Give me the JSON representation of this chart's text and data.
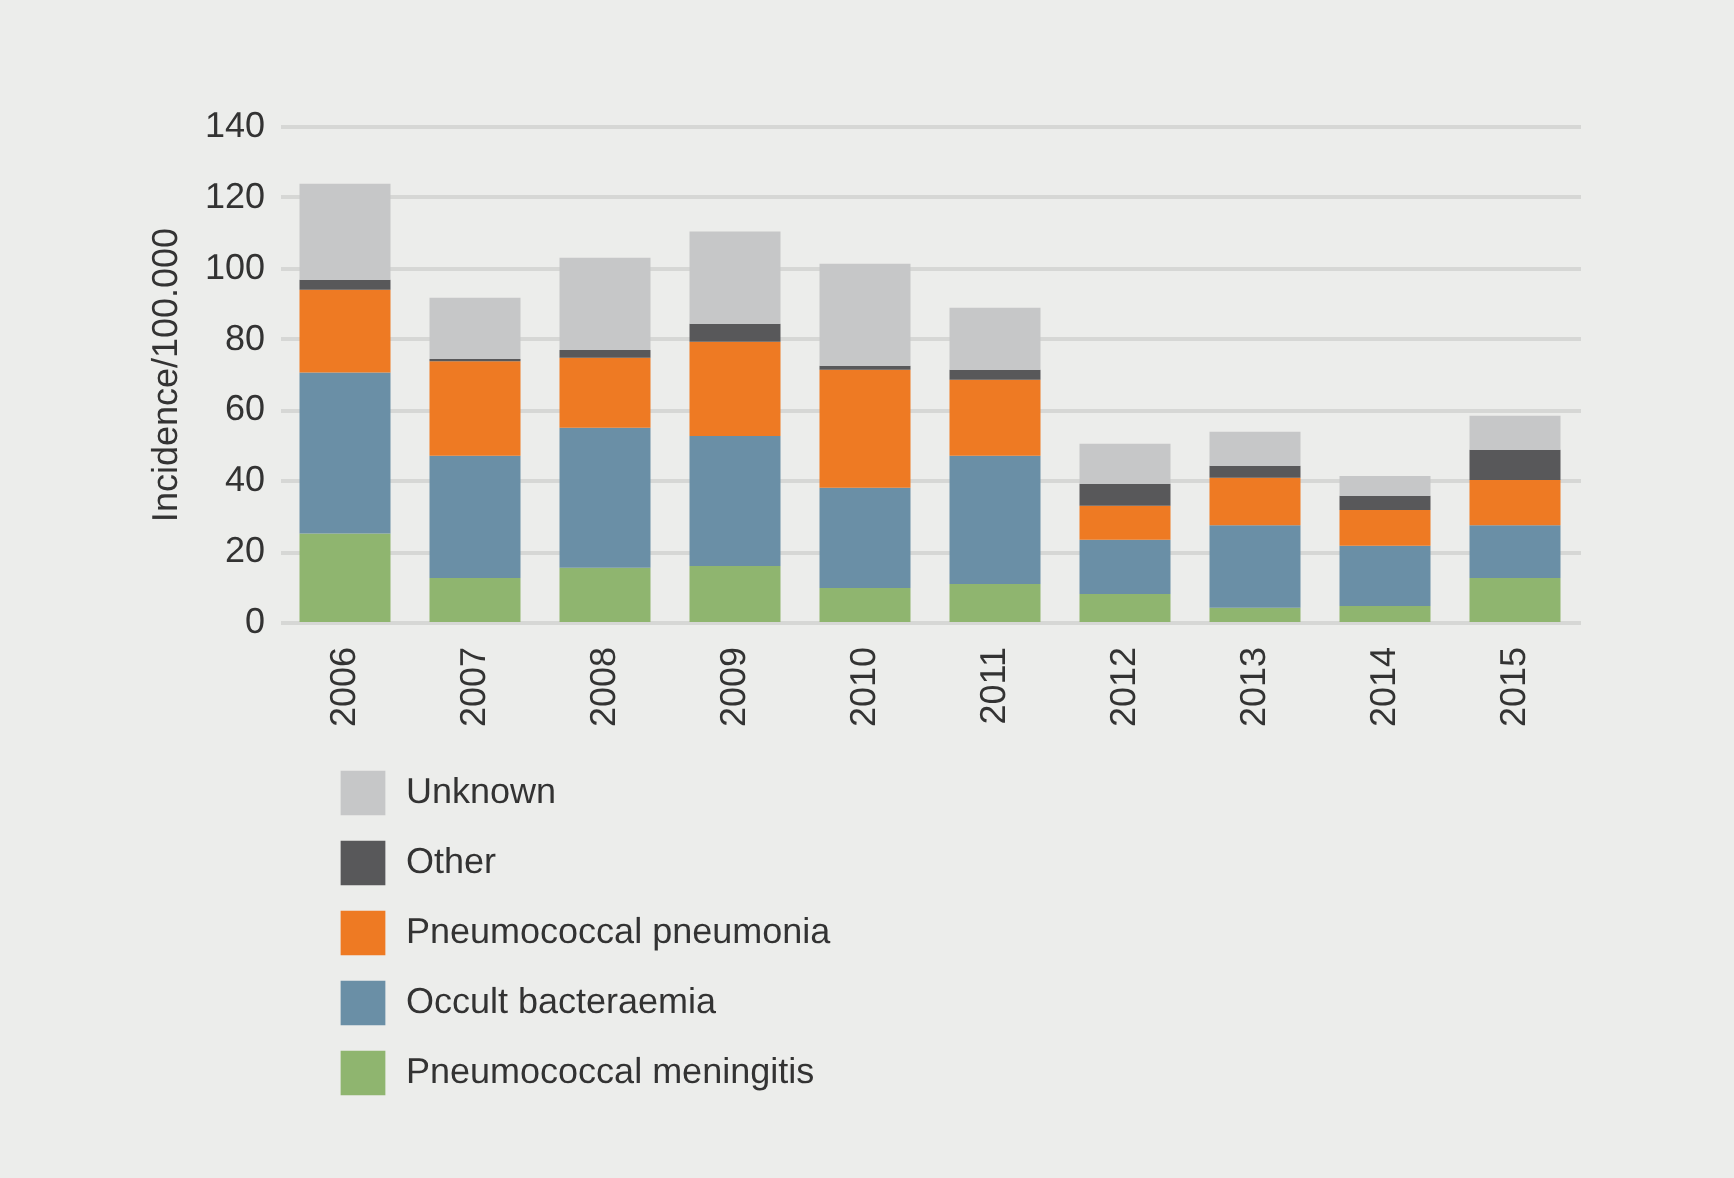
{
  "chart_data": {
    "type": "bar",
    "stacked": true,
    "ylabel": "Incidence/100.000",
    "categories": [
      "2006",
      "2007",
      "2008",
      "2009",
      "2010",
      "2011",
      "2012",
      "2013",
      "2014",
      "2015"
    ],
    "series": [
      {
        "name": "Pneumococcal meningitis",
        "color": "#8fb56f",
        "values": [
          25,
          12.4,
          15.3,
          15.8,
          9.6,
          10.7,
          7.9,
          4,
          4.5,
          12.4
        ]
      },
      {
        "name": "Occult bacteraemia",
        "color": "#6a8fa6",
        "values": [
          45.4,
          34.5,
          39.5,
          36.7,
          28.3,
          36.2,
          15.3,
          23.3,
          17,
          14.9
        ]
      },
      {
        "name": "Pneumococcal pneumonia",
        "color": "#ee7a23",
        "values": [
          23.4,
          26.7,
          19.8,
          26.6,
          33.3,
          21.5,
          9.6,
          13.4,
          10.1,
          12.8
        ]
      },
      {
        "name": "Other",
        "color": "#58585a",
        "values": [
          2.8,
          0.6,
          2.2,
          5.1,
          1.1,
          2.8,
          6.2,
          3.4,
          4,
          8.5
        ]
      },
      {
        "name": "Unknown",
        "color": "#c6c7c8",
        "values": [
          27.1,
          17.3,
          26,
          26,
          28.8,
          17.5,
          11.3,
          9.6,
          5.6,
          9.6
        ]
      }
    ],
    "ylim": [
      0,
      140
    ],
    "yticks": [
      0,
      20,
      40,
      60,
      80,
      100,
      120,
      140
    ],
    "grid": "y",
    "legend": "bottom"
  }
}
